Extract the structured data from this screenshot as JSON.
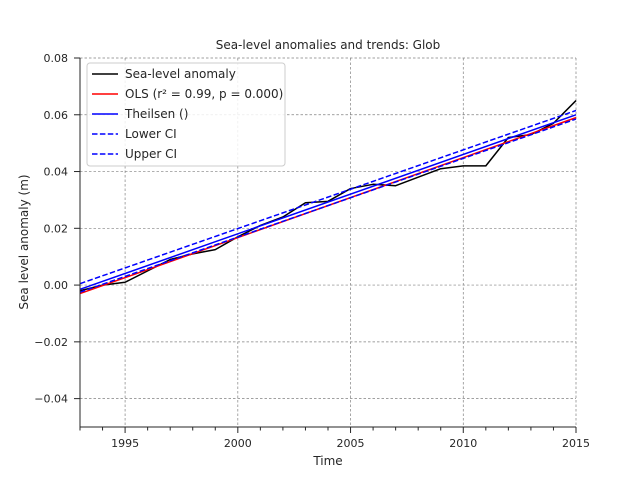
{
  "chart_data": {
    "type": "line",
    "title": "Sea-level anomalies and trends: Glob",
    "xlabel": "Time",
    "ylabel": "Sea level anomaly (m)",
    "xlim": [
      1993,
      2015
    ],
    "ylim": [
      -0.05,
      0.08
    ],
    "x_ticks": [
      1995,
      2000,
      2005,
      2010,
      2015
    ],
    "x_minor_ticks": [
      1993,
      1994,
      1996,
      1997,
      1998,
      1999,
      2001,
      2002,
      2003,
      2004,
      2006,
      2007,
      2008,
      2009,
      2011,
      2012,
      2013,
      2014
    ],
    "y_ticks": [
      -0.04,
      -0.02,
      0.0,
      0.02,
      0.04,
      0.06,
      0.08
    ],
    "x_tick_labels": [
      "1995",
      "2000",
      "2005",
      "2010",
      "2015"
    ],
    "y_tick_labels": [
      "−0.04",
      "−0.02",
      "0.00",
      "0.02",
      "0.04",
      "0.06",
      "0.08"
    ],
    "grid": true,
    "legend_placement": "top-left",
    "series": [
      {
        "name": "Sea-level anomaly",
        "color": "#000000",
        "style": "solid",
        "x": [
          1993,
          1994,
          1995,
          1996,
          1997,
          1998,
          1999,
          2000,
          2001,
          2002,
          2003,
          2004,
          2005,
          2006,
          2007,
          2008,
          2009,
          2010,
          2011,
          2012,
          2013,
          2014,
          2015
        ],
        "y": [
          -0.002,
          0.0,
          0.001,
          0.005,
          0.009,
          0.011,
          0.0125,
          0.017,
          0.021,
          0.024,
          0.029,
          0.0295,
          0.034,
          0.0355,
          0.035,
          0.038,
          0.041,
          0.042,
          0.042,
          0.052,
          0.053,
          0.057,
          0.065
        ]
      },
      {
        "name": "OLS",
        "legend_label": "OLS (r² = 0.99, p = 0.000)",
        "color": "#ff0000",
        "style": "solid",
        "x": [
          1993,
          2015
        ],
        "y": [
          -0.003,
          0.059
        ]
      },
      {
        "name": "Theilsen ()",
        "color": "#0000ff",
        "style": "solid",
        "x": [
          1993,
          2015
        ],
        "y": [
          -0.0015,
          0.06
        ]
      },
      {
        "name": "Lower CI",
        "color": "#0000ff",
        "style": "dashed",
        "x": [
          1993,
          2015
        ],
        "y": [
          -0.0025,
          0.0585
        ]
      },
      {
        "name": "Upper CI",
        "color": "#0000ff",
        "style": "dashed",
        "x": [
          1993,
          2015
        ],
        "y": [
          0.0005,
          0.0615
        ]
      }
    ]
  }
}
